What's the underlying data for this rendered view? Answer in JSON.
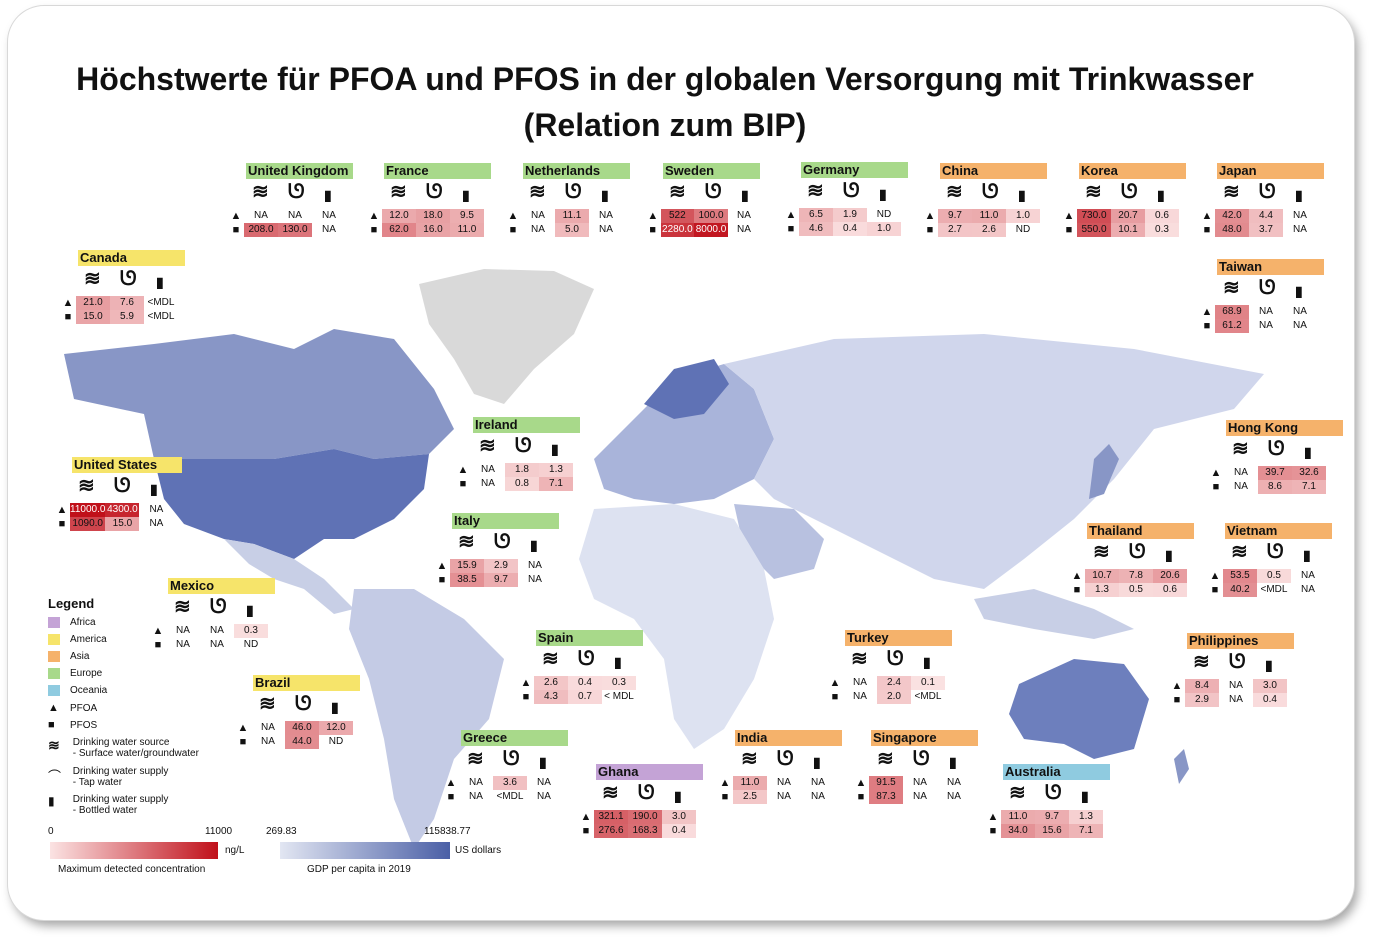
{
  "title": {
    "line1": "Höchstwerte für PFOA und PFOS in der globalen Versorgung mit Trinkwasser",
    "line2": "(Relation zum BIP)"
  },
  "colors": {
    "africa": "#c4a3d6",
    "america": "#f6e46a",
    "asia": "#f5b26b",
    "europe": "#a8d98a",
    "oceania": "#8fcbe0",
    "gdp_low": "#e2e6f2",
    "gdp_high": "#4a5fa6",
    "conc_low": "#fbe3e3",
    "conc_high": "#c0101a",
    "no_data": "#d9d9d9"
  },
  "icons": {
    "source": "waves-icon",
    "tap": "tap-icon",
    "bottle": "bottle-icon",
    "pfoa": "triangle-icon",
    "pfos": "square-icon"
  },
  "legend": {
    "title": "Legend",
    "items": [
      {
        "label": "Africa",
        "color": "#c4a3d6"
      },
      {
        "label": "America",
        "color": "#f6e46a"
      },
      {
        "label": "Asia",
        "color": "#f5b26b"
      },
      {
        "label": "Europe",
        "color": "#a8d98a"
      },
      {
        "label": "Oceania",
        "color": "#8fcbe0"
      }
    ],
    "pfoa": "PFOA",
    "pfos": "PFOS",
    "source_line1": "Drinking water source",
    "source_line2": "- Surface water/groundwater",
    "tap_line1": "Drinking water supply",
    "tap_line2": "- Tap water",
    "bottle_line1": "Drinking water supply",
    "bottle_line2": "- Bottled water",
    "conc_min": "0",
    "conc_max": "11000",
    "conc_unit": "ng/L",
    "conc_caption": "Maximum detected concentration",
    "gdp_min": "269.83",
    "gdp_max": "115838.77",
    "gdp_unit": "US dollars",
    "gdp_caption": "GDP per capita in 2019"
  },
  "countries": [
    {
      "name": "United Kingdom",
      "region": "europe",
      "pfoa": [
        "NA",
        "NA",
        "NA"
      ],
      "pfos": [
        "208.0",
        "130.0",
        "NA"
      ],
      "pfoa_v": [
        null,
        null,
        null
      ],
      "pfos_v": [
        208,
        130,
        null
      ]
    },
    {
      "name": "France",
      "region": "europe",
      "pfoa": [
        "12.0",
        "18.0",
        "9.5"
      ],
      "pfos": [
        "62.0",
        "16.0",
        "11.0"
      ],
      "pfoa_v": [
        12,
        18,
        9.5
      ],
      "pfos_v": [
        62,
        16,
        11
      ]
    },
    {
      "name": "Netherlands",
      "region": "europe",
      "pfoa": [
        "NA",
        "11.1",
        "NA"
      ],
      "pfos": [
        "NA",
        "5.0",
        "NA"
      ],
      "pfoa_v": [
        null,
        11.1,
        null
      ],
      "pfos_v": [
        null,
        5,
        null
      ]
    },
    {
      "name": "Sweden",
      "region": "europe",
      "pfoa": [
        "522",
        "100.0",
        "NA"
      ],
      "pfos": [
        "2280.0",
        "8000.0",
        "NA"
      ],
      "pfoa_v": [
        522,
        100,
        null
      ],
      "pfos_v": [
        2280,
        8000,
        null
      ]
    },
    {
      "name": "Germany",
      "region": "europe",
      "pfoa": [
        "6.5",
        "1.9",
        "ND"
      ],
      "pfos": [
        "4.6",
        "0.4",
        "1.0"
      ],
      "pfoa_v": [
        6.5,
        1.9,
        null
      ],
      "pfos_v": [
        4.6,
        0.4,
        1.0
      ]
    },
    {
      "name": "China",
      "region": "asia",
      "pfoa": [
        "9.7",
        "11.0",
        "1.0"
      ],
      "pfos": [
        "2.7",
        "2.6",
        "ND"
      ],
      "pfoa_v": [
        9.7,
        11,
        1
      ],
      "pfos_v": [
        2.7,
        2.6,
        null
      ]
    },
    {
      "name": "Korea",
      "region": "asia",
      "pfoa": [
        "730.0",
        "20.7",
        "0.6"
      ],
      "pfos": [
        "550.0",
        "10.1",
        "0.3"
      ],
      "pfoa_v": [
        730,
        20.7,
        0.6
      ],
      "pfos_v": [
        550,
        10.1,
        0.3
      ]
    },
    {
      "name": "Japan",
      "region": "asia",
      "pfoa": [
        "42.0",
        "4.4",
        "NA"
      ],
      "pfos": [
        "48.0",
        "3.7",
        "NA"
      ],
      "pfoa_v": [
        42,
        4.4,
        null
      ],
      "pfos_v": [
        48,
        3.7,
        null
      ]
    },
    {
      "name": "Canada",
      "region": "america",
      "pfoa": [
        "21.0",
        "7.6",
        "<MDL"
      ],
      "pfos": [
        "15.0",
        "5.9",
        "<MDL"
      ],
      "pfoa_v": [
        21,
        7.6,
        null
      ],
      "pfos_v": [
        15,
        5.9,
        null
      ]
    },
    {
      "name": "Taiwan",
      "region": "asia",
      "pfoa": [
        "68.9",
        "NA",
        "NA"
      ],
      "pfos": [
        "61.2",
        "NA",
        "NA"
      ],
      "pfoa_v": [
        68.9,
        null,
        null
      ],
      "pfos_v": [
        61.2,
        null,
        null
      ]
    },
    {
      "name": "Ireland",
      "region": "europe",
      "pfoa": [
        "NA",
        "1.8",
        "1.3"
      ],
      "pfos": [
        "NA",
        "0.8",
        "7.1"
      ],
      "pfoa_v": [
        null,
        1.8,
        1.3
      ],
      "pfos_v": [
        null,
        0.8,
        7.1
      ]
    },
    {
      "name": "Hong Kong",
      "region": "asia",
      "pfoa": [
        "NA",
        "39.7",
        "32.6"
      ],
      "pfos": [
        "NA",
        "8.6",
        "7.1"
      ],
      "pfoa_v": [
        null,
        39.7,
        32.6
      ],
      "pfos_v": [
        null,
        8.6,
        7.1
      ]
    },
    {
      "name": "United States",
      "region": "america",
      "pfoa": [
        "11000.0",
        "4300.0",
        "NA"
      ],
      "pfos": [
        "1090.0",
        "15.0",
        "NA"
      ],
      "pfoa_v": [
        11000,
        4300,
        null
      ],
      "pfos_v": [
        1090,
        15,
        null
      ]
    },
    {
      "name": "Italy",
      "region": "europe",
      "pfoa": [
        "15.9",
        "2.9",
        "NA"
      ],
      "pfos": [
        "38.5",
        "9.7",
        "NA"
      ],
      "pfoa_v": [
        15.9,
        2.9,
        null
      ],
      "pfos_v": [
        38.5,
        9.7,
        null
      ]
    },
    {
      "name": "Thailand",
      "region": "asia",
      "pfoa": [
        "10.7",
        "7.8",
        "20.6"
      ],
      "pfos": [
        "1.3",
        "0.5",
        "0.6"
      ],
      "pfoa_v": [
        10.7,
        7.8,
        20.6
      ],
      "pfos_v": [
        1.3,
        0.5,
        0.6
      ]
    },
    {
      "name": "Vietnam",
      "region": "asia",
      "pfoa": [
        "53.5",
        "0.5",
        "NA"
      ],
      "pfos": [
        "40.2",
        "<MDL",
        "NA"
      ],
      "pfoa_v": [
        53.5,
        0.5,
        null
      ],
      "pfos_v": [
        40.2,
        null,
        null
      ]
    },
    {
      "name": "Mexico",
      "region": "america",
      "pfoa": [
        "NA",
        "NA",
        "0.3"
      ],
      "pfos": [
        "NA",
        "NA",
        "ND"
      ],
      "pfoa_v": [
        null,
        null,
        0.3
      ],
      "pfos_v": [
        null,
        null,
        null
      ]
    },
    {
      "name": "Spain",
      "region": "europe",
      "pfoa": [
        "2.6",
        "0.4",
        "0.3"
      ],
      "pfos": [
        "4.3",
        "0.7",
        "< MDL"
      ],
      "pfoa_v": [
        2.6,
        0.4,
        0.3
      ],
      "pfos_v": [
        4.3,
        0.7,
        null
      ]
    },
    {
      "name": "Turkey",
      "region": "asia",
      "pfoa": [
        "NA",
        "2.4",
        "0.1"
      ],
      "pfos": [
        "NA",
        "2.0",
        "<MDL"
      ],
      "pfoa_v": [
        null,
        2.4,
        0.1
      ],
      "pfos_v": [
        null,
        2.0,
        null
      ]
    },
    {
      "name": "Philippines",
      "region": "asia",
      "pfoa": [
        "8.4",
        "NA",
        "3.0"
      ],
      "pfos": [
        "2.9",
        "NA",
        "0.4"
      ],
      "pfoa_v": [
        8.4,
        null,
        3.0
      ],
      "pfos_v": [
        2.9,
        null,
        0.4
      ]
    },
    {
      "name": "Brazil",
      "region": "america",
      "pfoa": [
        "NA",
        "46.0",
        "12.0"
      ],
      "pfos": [
        "NA",
        "44.0",
        "ND"
      ],
      "pfoa_v": [
        null,
        46,
        12
      ],
      "pfos_v": [
        null,
        44,
        null
      ]
    },
    {
      "name": "Greece",
      "region": "europe",
      "pfoa": [
        "NA",
        "3.6",
        "NA"
      ],
      "pfos": [
        "NA",
        "<MDL",
        "NA"
      ],
      "pfoa_v": [
        null,
        3.6,
        null
      ],
      "pfos_v": [
        null,
        null,
        null
      ]
    },
    {
      "name": "Ghana",
      "region": "africa",
      "pfoa": [
        "321.1",
        "190.0",
        "3.0"
      ],
      "pfos": [
        "276.6",
        "168.3",
        "0.4"
      ],
      "pfoa_v": [
        321.1,
        190,
        3.0
      ],
      "pfos_v": [
        276.6,
        168.3,
        0.4
      ]
    },
    {
      "name": "India",
      "region": "asia",
      "pfoa": [
        "11.0",
        "NA",
        "NA"
      ],
      "pfos": [
        "2.5",
        "NA",
        "NA"
      ],
      "pfoa_v": [
        11,
        null,
        null
      ],
      "pfos_v": [
        2.5,
        null,
        null
      ]
    },
    {
      "name": "Singapore",
      "region": "asia",
      "pfoa": [
        "91.5",
        "NA",
        "NA"
      ],
      "pfos": [
        "87.3",
        "NA",
        "NA"
      ],
      "pfoa_v": [
        91.5,
        null,
        null
      ],
      "pfos_v": [
        87.3,
        null,
        null
      ]
    },
    {
      "name": "Australia",
      "region": "oceania",
      "pfoa": [
        "11.0",
        "9.7",
        "1.3"
      ],
      "pfos": [
        "34.0",
        "15.6",
        "7.1"
      ],
      "pfoa_v": [
        11,
        9.7,
        1.3
      ],
      "pfos_v": [
        34,
        15.6,
        7.1
      ]
    }
  ]
}
